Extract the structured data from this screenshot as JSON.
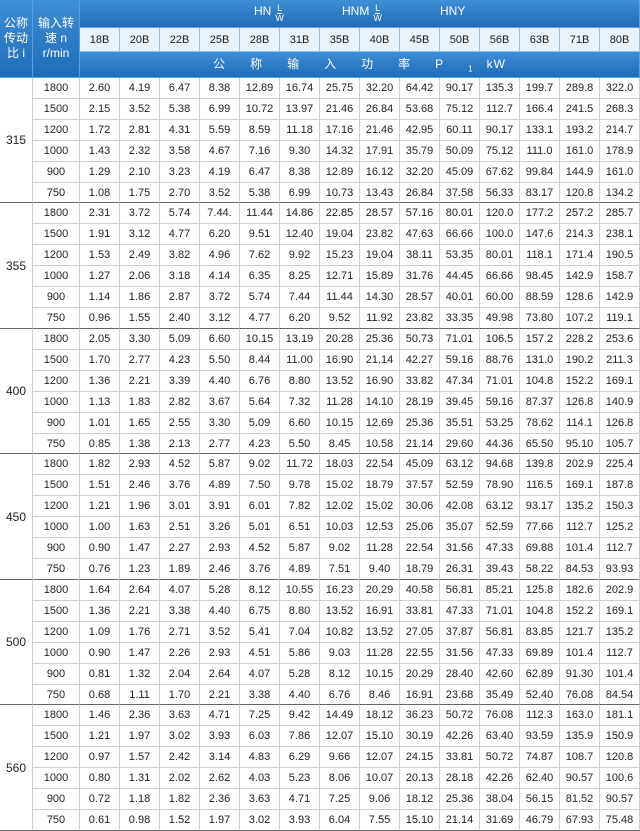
{
  "header": {
    "ratio": [
      "公称",
      "传动",
      "比 i"
    ],
    "speed": [
      "输入转",
      "速 n",
      "r/min"
    ],
    "models": [
      {
        "name": "HN",
        "num": "L",
        "den": "W"
      },
      {
        "name": "HNM",
        "num": "L",
        "den": "W"
      },
      {
        "name": "HNY"
      }
    ],
    "sizes": [
      "18B",
      "20B",
      "22B",
      "25B",
      "28B",
      "31B",
      "35B",
      "40B",
      "45B",
      "50B",
      "56B",
      "63B",
      "71B",
      "80B"
    ],
    "power": {
      "label": "公称输入功率",
      "symbol": "P",
      "subscript": "1",
      "unit": "kW"
    }
  },
  "groups": [
    {
      "ratio": "315",
      "rows": [
        [
          "1800",
          "2.60",
          "4.19",
          "6.47",
          "8.38",
          "12.89",
          "16.74",
          "25.75",
          "32.20",
          "64.42",
          "90.17",
          "135.3",
          "199.7",
          "289.8",
          "322.0"
        ],
        [
          "1500",
          "2.15",
          "3.52",
          "5.38",
          "6.99",
          "10.72",
          "13.97",
          "21.46",
          "26.84",
          "53.68",
          "75.12",
          "112.7",
          "166.4",
          "241.5",
          "268.3"
        ],
        [
          "1200",
          "1.72",
          "2.81",
          "4.31",
          "5.59",
          "8.59",
          "11.18",
          "17.16",
          "21.46",
          "42.95",
          "60.11",
          "90.17",
          "133.1",
          "193.2",
          "214.7"
        ],
        [
          "1000",
          "1.43",
          "2.32",
          "3.58",
          "4.67",
          "7.16",
          "9.30",
          "14.32",
          "17.91",
          "35.79",
          "50.09",
          "75.12",
          "111.0",
          "161.0",
          "178.9"
        ],
        [
          "900",
          "1.29",
          "2.10",
          "3.23",
          "4.19",
          "6.47",
          "8.38",
          "12.89",
          "16.12",
          "32.20",
          "45.09",
          "67.62",
          "99.84",
          "144.9",
          "161.0"
        ],
        [
          "750",
          "1.08",
          "1.75",
          "2.70",
          "3.52",
          "5.38",
          "6.99",
          "10.73",
          "13.43",
          "26.84",
          "37.58",
          "56.33",
          "83.17",
          "120.8",
          "134.2"
        ]
      ]
    },
    {
      "ratio": "355",
      "rows": [
        [
          "1800",
          "2.31",
          "3.72",
          "5.74",
          "7.44.",
          "11.44",
          "14.86",
          "22.85",
          "28.57",
          "57.16",
          "80.01",
          "120.0",
          "177.2",
          "257.2",
          "285.7"
        ],
        [
          "1500",
          "1.91",
          "3.12",
          "4.77",
          "6.20",
          "9.51",
          "12.40",
          "19.04",
          "23.82",
          "47.63",
          "66.66",
          "100.0",
          "147.6",
          "214.3",
          "238.1"
        ],
        [
          "1200",
          "1.53",
          "2.49",
          "3.82",
          "4.96",
          "7.62",
          "9.92",
          "15.23",
          "19.04",
          "38.11",
          "53.35",
          "80.01",
          "118.1",
          "171.4",
          "190.5"
        ],
        [
          "1000",
          "1.27",
          "2.06",
          "3.18",
          "4.14",
          "6.35",
          "8.25",
          "12.71",
          "15.89",
          "31.76",
          "44.45",
          "66.66",
          "98.45",
          "142.9",
          "158.7"
        ],
        [
          "900",
          "1.14",
          "1.86",
          "2.87",
          "3.72",
          "5.74",
          "7.44",
          "11.44",
          "14.30",
          "28.57",
          "40.01",
          "60.00",
          "88.59",
          "128.6",
          "142.9"
        ],
        [
          "750",
          "0.96",
          "1.55",
          "2.40",
          "3.12",
          "4.77",
          "6.20",
          "9.52",
          "11.92",
          "23.82",
          "33.35",
          "49.98",
          "73.80",
          "107.2",
          "119.1"
        ]
      ]
    },
    {
      "ratio": "400",
      "rows": [
        [
          "1800",
          "2.05",
          "3.30",
          "5.09",
          "6.60",
          "10.15",
          "13.19",
          "20.28",
          "25.36",
          "50.73",
          "71.01",
          "106.5",
          "157.2",
          "228.2",
          "253.6"
        ],
        [
          "1500",
          "1.70",
          "2.77",
          "4.23",
          "5.50",
          "8.44",
          "11.00",
          "16.90",
          "21.14",
          "42.27",
          "59.16",
          "88.76",
          "131.0",
          "190.2",
          "211.3"
        ],
        [
          "1200",
          "1.36",
          "2.21",
          "3.39",
          "4.40",
          "6.76",
          "8.80",
          "13.52",
          "16.90",
          "33.82",
          "47.34",
          "71.01",
          "104.8",
          "152.2",
          "169.1"
        ],
        [
          "1000",
          "1.13",
          "1.83",
          "2.82",
          "3.67",
          "5.64",
          "7.32",
          "11.28",
          "14.10",
          "28.19",
          "39.45",
          "59.16",
          "87.37",
          "126.8",
          "140.9"
        ],
        [
          "900",
          "1.01",
          "1.65",
          "2.55",
          "3.30",
          "5.09",
          "6.60",
          "10.15",
          "12.69",
          "25.36",
          "35.51",
          "53.25",
          "78.62",
          "114.1",
          "126.8"
        ],
        [
          "750",
          "0.85",
          "1.38",
          "2.13",
          "2.77",
          "4.23",
          "5.50",
          "8.45",
          "10.58",
          "21.14",
          "29.60",
          "44.36",
          "65.50",
          "95.10",
          "105.7"
        ]
      ]
    },
    {
      "ratio": "450",
      "rows": [
        [
          "1800",
          "1.82",
          "2.93",
          "4.52",
          "5.87",
          "9.02",
          "11.72",
          "18.03",
          "22.54",
          "45.09",
          "63.12",
          "94.68",
          "139.8",
          "202.9",
          "225.4"
        ],
        [
          "1500",
          "1.51",
          "2.46",
          "3.76",
          "4.89",
          "7.50",
          "9.78",
          "15.02",
          "18.79",
          "37.57",
          "52.59",
          "78.90",
          "116.5",
          "169.1",
          "187.8"
        ],
        [
          "1200",
          "1.21",
          "1.96",
          "3.01",
          "3.91",
          "6.01",
          "7.82",
          "12.02",
          "15.02",
          "30.06",
          "42.08",
          "63.12",
          "93.17",
          "135.2",
          "150.3"
        ],
        [
          "1000",
          "1.00",
          "1.63",
          "2.51",
          "3.26",
          "5.01",
          "6.51",
          "10.03",
          "12.53",
          "25.06",
          "35.07",
          "52.59",
          "77.66",
          "112.7",
          "125.2"
        ],
        [
          "900",
          "0.90",
          "1.47",
          "2.27",
          "2.93",
          "4.52",
          "5.87",
          "9.02",
          "11.28",
          "22.54",
          "31.56",
          "47.33",
          "69.88",
          "101.4",
          "112.7"
        ],
        [
          "750",
          "0.76",
          "1.23",
          "1.89",
          "2.46",
          "3.76",
          "4.89",
          "7.51",
          "9.40",
          "18.79",
          "26.31",
          "39.43",
          "58.22",
          "84.53",
          "93.93"
        ]
      ]
    },
    {
      "ratio": "500",
      "rows": [
        [
          "1800",
          "1.64",
          "2.64",
          "4.07",
          "5.28",
          "8.12",
          "10.55",
          "16.23",
          "20.29",
          "40.58",
          "56.81",
          "85.21",
          "125.8",
          "182.6",
          "202.9"
        ],
        [
          "1500",
          "1.36",
          "2.21",
          "3.38",
          "4.40",
          "6.75",
          "8.80",
          "13.52",
          "16.91",
          "33.81",
          "47.33",
          "71.01",
          "104.8",
          "152.2",
          "169.1"
        ],
        [
          "1200",
          "1.09",
          "1.76",
          "2.71",
          "3.52",
          "5.41",
          "7.04",
          "10.82",
          "13.52",
          "27.05",
          "37.87",
          "56.81",
          "83.85",
          "121.7",
          "135.2"
        ],
        [
          "1000",
          "0.90",
          "1.47",
          "2.26",
          "2.93",
          "4.51",
          "5.86",
          "9.03",
          "11.28",
          "22.55",
          "31.56",
          "47.33",
          "69.89",
          "101.4",
          "112.7"
        ],
        [
          "900",
          "0.81",
          "1.32",
          "2.04",
          "2.64",
          "4.07",
          "5.28",
          "8.12",
          "10.15",
          "20.29",
          "28.40",
          "42.60",
          "62.89",
          "91.30",
          "101.4"
        ],
        [
          "750",
          "0.68",
          "1.11",
          "1.70",
          "2.21",
          "3.38",
          "4.40",
          "6.76",
          "8.46",
          "16.91",
          "23.68",
          "35.49",
          "52.40",
          "76.08",
          "84.54"
        ]
      ]
    },
    {
      "ratio": "560",
      "rows": [
        [
          "1800",
          "1.46",
          "2.36",
          "3.63",
          "4.71",
          "7.25",
          "9.42",
          "14.49",
          "18.12",
          "36.23",
          "50.72",
          "76.08",
          "112.3",
          "163.0",
          "181.1"
        ],
        [
          "1500",
          "1.21",
          "1.97",
          "3.02",
          "3.93",
          "6.03",
          "7.86",
          "12.07",
          "15.10",
          "30.19",
          "42.26",
          "63.40",
          "93.59",
          "135.9",
          "150.9"
        ],
        [
          "1200",
          "0.97",
          "1.57",
          "2.42",
          "3.14",
          "4.83",
          "6.29",
          "9.66",
          "12.07",
          "24.15",
          "33.81",
          "50.72",
          "74.87",
          "108.7",
          "120.8"
        ],
        [
          "1000",
          "0.80",
          "1.31",
          "2.02",
          "2.62",
          "4.03",
          "5.23",
          "8.06",
          "10.07",
          "20.13",
          "28.18",
          "42.26",
          "62.40",
          "90.57",
          "100.6"
        ],
        [
          "900",
          "0.72",
          "1.18",
          "1.82",
          "2.36",
          "3.63",
          "4.71",
          "7.25",
          "9.06",
          "18.12",
          "25.36",
          "38.04",
          "56.15",
          "81.52",
          "90.57"
        ],
        [
          "750",
          "0.61",
          "0.98",
          "1.52",
          "1.97",
          "3.02",
          "3.93",
          "6.04",
          "7.55",
          "15.10",
          "21.14",
          "31.69",
          "46.79",
          "67.93",
          "75.48"
        ]
      ]
    }
  ]
}
